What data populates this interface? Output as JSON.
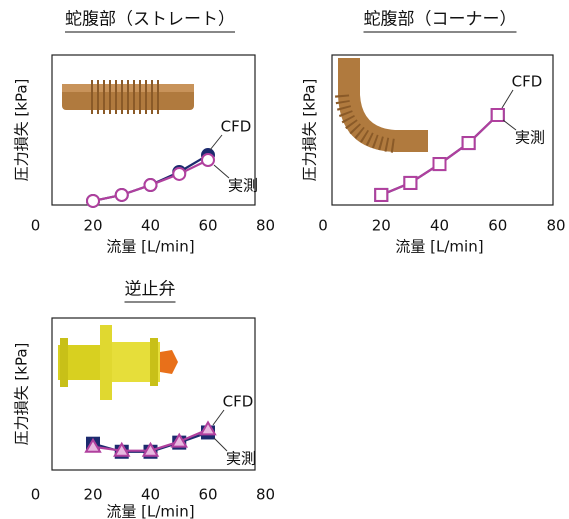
{
  "chart_data": [
    {
      "type": "line",
      "title": "蛇腹部（ストレート）",
      "x_label": "流量 [L/min]",
      "y_label": "圧力損失 [kPa]",
      "x": [
        20,
        30,
        40,
        50,
        60
      ],
      "xlim": [
        0,
        80
      ],
      "xticks": [
        0,
        20,
        40,
        60,
        80
      ],
      "ylim": [
        0,
        100
      ],
      "series": [
        {
          "name": "CFD",
          "color": "#1c2a6e",
          "marker": "circle",
          "values": [
            2.7,
            6.7,
            13.3,
            22,
            33.3
          ]
        },
        {
          "name": "実測",
          "color": "#b0409e",
          "marker": "circle-open",
          "values": [
            2.7,
            6.7,
            13.3,
            20.7,
            30
          ]
        }
      ]
    },
    {
      "type": "line",
      "title": "蛇腹部（コーナー）",
      "x_label": "流量 [L/min]",
      "y_label": "圧力損失 [kPa]",
      "x": [
        20,
        30,
        40,
        50,
        60
      ],
      "xlim": [
        0,
        80
      ],
      "xticks": [
        0,
        20,
        40,
        60,
        80
      ],
      "ylim": [
        0,
        100
      ],
      "series": [
        {
          "name": "CFD",
          "color": "#1c2a6e",
          "marker": "square",
          "values": [
            6.7,
            14.7,
            27.3,
            41.3,
            60
          ]
        },
        {
          "name": "実測",
          "color": "#b0409e",
          "marker": "square-open",
          "values": [
            6.7,
            14.7,
            27.3,
            41.3,
            60
          ]
        }
      ]
    },
    {
      "type": "line",
      "title": "逆止弁",
      "x_label": "流量 [L/min]",
      "y_label": "圧力損失 [kPa]",
      "x": [
        20,
        30,
        40,
        50,
        60
      ],
      "xlim": [
        0,
        80
      ],
      "xticks": [
        0,
        20,
        40,
        60,
        80
      ],
      "ylim": [
        0,
        100
      ],
      "series": [
        {
          "name": "CFD",
          "color": "#1c2a6e",
          "marker": "square",
          "values": [
            17.3,
            12,
            12,
            18,
            24.7
          ]
        },
        {
          "name": "実測",
          "color": "#b0409e",
          "marker": "triangle",
          "values": [
            15.3,
            12.7,
            12.7,
            18.7,
            26.7
          ]
        }
      ]
    }
  ]
}
